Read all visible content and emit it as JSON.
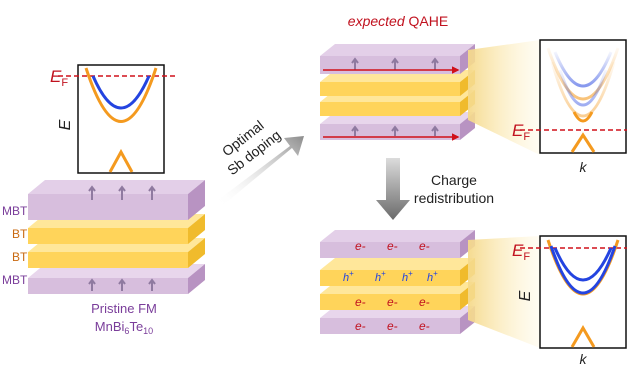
{
  "left_stack": {
    "layers": [
      "MBT",
      "BT",
      "BT",
      "MBT"
    ],
    "caption_line1": "Pristine FM",
    "caption_formula": {
      "base1": "MnBi",
      "sub1": "6",
      "base2": "Te",
      "sub2": "10"
    }
  },
  "band_left": {
    "fermi_label": "E",
    "fermi_sub": "F",
    "energy_axis": "E"
  },
  "arrow_doping": {
    "line1": "Optimal",
    "line2": "Sb doping"
  },
  "top_panel": {
    "title_italic": "expected",
    "title_rest": " QAHE"
  },
  "band_top_right": {
    "fermi_label": "E",
    "fermi_sub": "F",
    "k_axis": "k"
  },
  "arrow_redistribution": {
    "line1": "Charge",
    "line2": "redistribution"
  },
  "bottom_stack": {
    "electron_label": "e-",
    "hole_label": "h",
    "hole_sup": "+"
  },
  "band_bottom_right": {
    "fermi_label": "E",
    "fermi_sub": "F",
    "energy_axis": "E",
    "k_axis": "k"
  },
  "colors": {
    "mbt_layer": "#d7bedd",
    "bt_layer": "#ffd45a",
    "band_blue": "#2444e0",
    "band_orange": "#f49a1f",
    "fermi_red": "#d0101a",
    "label_purple": "#7a3d9a",
    "label_orange": "#c96a12"
  }
}
